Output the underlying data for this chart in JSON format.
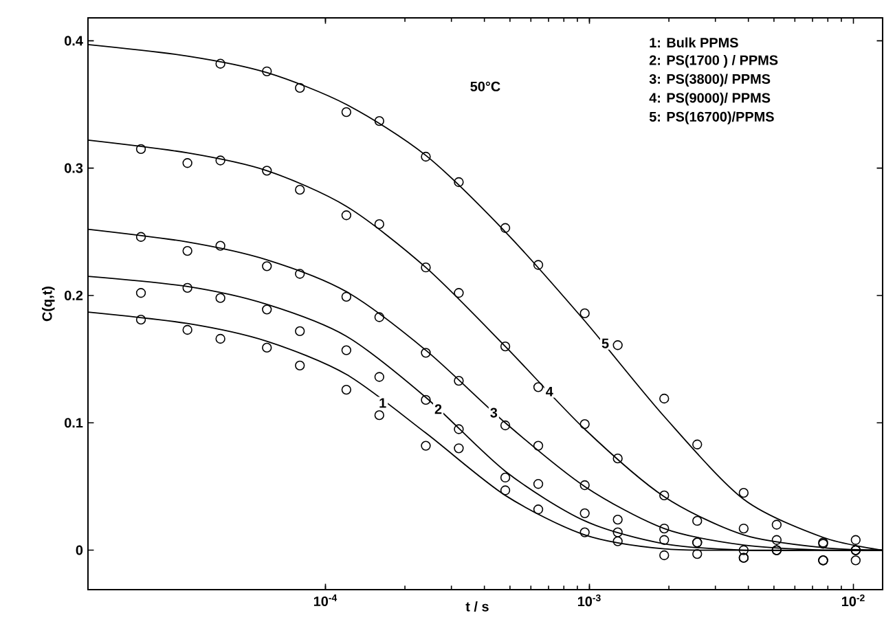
{
  "chart_data": {
    "type": "scatter",
    "xlabel": "t / s",
    "ylabel": "C(q,t)",
    "log": "x",
    "marker": "circle",
    "xlim": [
      1.26e-05,
      0.0129
    ],
    "ylim": [
      -0.031,
      0.418
    ],
    "xticks": [
      {
        "value": 0.0001,
        "label": "10$^{-4}$"
      },
      {
        "value": 0.001,
        "label": "10$^{-3}$"
      },
      {
        "value": 0.01,
        "label": "10$^{-2}$"
      }
    ],
    "yticks": [
      0,
      0.1,
      0.2,
      0.3,
      0.4
    ],
    "annotations": [
      "50°C",
      "1: Bulk PPMS",
      "2: PS(1700 ) / PPMS",
      "3: PS(3800)/ PPMS",
      "4: PS(9000)/ PPMS",
      "5: PS(16700)/PPMS"
    ],
    "series": [
      {
        "color": "#000000",
        "x": [
          2e-05,
          3e-05,
          4e-05,
          6e-05,
          8e-05,
          0.00012,
          0.00016,
          0.00024,
          0.00032,
          0.00048,
          0.00064,
          0.00096,
          0.00128,
          0.00192,
          0.00256,
          0.00384,
          0.00512,
          0.00768,
          0.0102
        ],
        "values": [
          0.181,
          0.173,
          0.166,
          0.159,
          0.145,
          0.126,
          0.106,
          0.082,
          0.08,
          0.047,
          0.032,
          0.014,
          0.007,
          -0.004,
          -0.003,
          -0.006,
          0.0,
          -0.008,
          -0.008
        ]
      },
      {
        "color": "#000000",
        "x": [
          2e-05,
          3e-05,
          4e-05,
          6e-05,
          8e-05,
          0.00012,
          0.00016,
          0.00024,
          0.00032,
          0.00048,
          0.00064,
          0.00096,
          0.00128,
          0.00192,
          0.00256,
          0.00384,
          0.00512,
          0.00768,
          0.0102
        ],
        "values": [
          0.202,
          0.206,
          0.198,
          0.189,
          0.172,
          0.157,
          0.136,
          0.118,
          0.095,
          0.057,
          0.052,
          0.029,
          0.014,
          0.008,
          0.006,
          -0.006,
          0.0,
          -0.008,
          0.0
        ]
      },
      {
        "color": "#000000",
        "x": [
          2e-05,
          3e-05,
          4e-05,
          6e-05,
          8e-05,
          0.00012,
          0.00016,
          0.00024,
          0.00032,
          0.00048,
          0.00064,
          0.00096,
          0.00128,
          0.00192,
          0.00256,
          0.00384,
          0.00512,
          0.00768,
          0.0102
        ],
        "values": [
          0.246,
          0.235,
          0.239,
          0.223,
          0.217,
          0.199,
          0.183,
          0.155,
          0.133,
          0.098,
          0.082,
          0.051,
          0.024,
          0.017,
          0.006,
          0.0,
          0.0,
          0.005,
          0.0
        ]
      },
      {
        "color": "#000000",
        "x": [
          2e-05,
          3e-05,
          4e-05,
          6e-05,
          8e-05,
          0.00012,
          0.00016,
          0.00024,
          0.00032,
          0.00048,
          0.00064,
          0.00096,
          0.00128,
          0.00192,
          0.00256,
          0.00384,
          0.00512,
          0.00768,
          0.0102
        ],
        "values": [
          0.315,
          0.304,
          0.306,
          0.298,
          0.283,
          0.263,
          0.256,
          0.222,
          0.202,
          0.16,
          0.128,
          0.099,
          0.072,
          0.043,
          0.023,
          0.017,
          0.008,
          -0.008,
          0.0
        ]
      },
      {
        "color": "#000000",
        "x": [
          4e-05,
          6e-05,
          8e-05,
          0.00012,
          0.00016,
          0.00024,
          0.00032,
          0.00048,
          0.00064,
          0.00096,
          0.00128,
          0.00192,
          0.00256,
          0.00384,
          0.00512,
          0.00768,
          0.0102
        ],
        "values": [
          0.382,
          0.376,
          0.363,
          0.344,
          0.337,
          0.309,
          0.289,
          0.253,
          0.224,
          0.186,
          0.161,
          0.119,
          0.083,
          0.045,
          0.02,
          0.006,
          0.008
        ]
      },
      {
        "type": "line",
        "name": "1",
        "marker": "none",
        "color": "#000000",
        "x": [
          1.26e-05,
          3e-05,
          6e-05,
          0.00012,
          0.00024,
          0.00048,
          0.00096,
          0.00192,
          0.00384,
          0.00768,
          0.0129
        ],
        "values": [
          0.187,
          0.178,
          0.164,
          0.138,
          0.092,
          0.043,
          0.012,
          0.001,
          0.0,
          0.0,
          0.0
        ]
      },
      {
        "type": "line",
        "name": "2",
        "marker": "none",
        "color": "#000000",
        "x": [
          1.26e-05,
          3e-05,
          6e-05,
          0.00012,
          0.00024,
          0.00048,
          0.00096,
          0.00192,
          0.00384,
          0.00768,
          0.0129
        ],
        "values": [
          0.215,
          0.207,
          0.193,
          0.168,
          0.12,
          0.062,
          0.023,
          0.005,
          0.0,
          0.0,
          0.0
        ]
      },
      {
        "type": "line",
        "name": "3",
        "marker": "none",
        "color": "#000000",
        "x": [
          1.26e-05,
          3e-05,
          6e-05,
          0.00012,
          0.00024,
          0.00048,
          0.00096,
          0.00192,
          0.00384,
          0.00768,
          0.0129
        ],
        "values": [
          0.252,
          0.242,
          0.228,
          0.203,
          0.157,
          0.1,
          0.05,
          0.017,
          0.004,
          0.0,
          0.0
        ]
      },
      {
        "type": "line",
        "name": "4",
        "marker": "none",
        "color": "#000000",
        "x": [
          1.26e-05,
          3e-05,
          6e-05,
          0.00012,
          0.00024,
          0.00048,
          0.00096,
          0.00192,
          0.00384,
          0.00768,
          0.0129
        ],
        "values": [
          0.322,
          0.312,
          0.298,
          0.27,
          0.222,
          0.16,
          0.095,
          0.042,
          0.012,
          0.002,
          0.0
        ]
      },
      {
        "type": "line",
        "name": "5",
        "marker": "none",
        "color": "#000000",
        "x": [
          1.26e-05,
          3e-05,
          6e-05,
          0.00012,
          0.00024,
          0.00048,
          0.00096,
          0.00192,
          0.00384,
          0.00768,
          0.0129
        ],
        "values": [
          0.397,
          0.388,
          0.375,
          0.35,
          0.31,
          0.25,
          0.18,
          0.105,
          0.04,
          0.01,
          0.0
        ]
      }
    ]
  }
}
